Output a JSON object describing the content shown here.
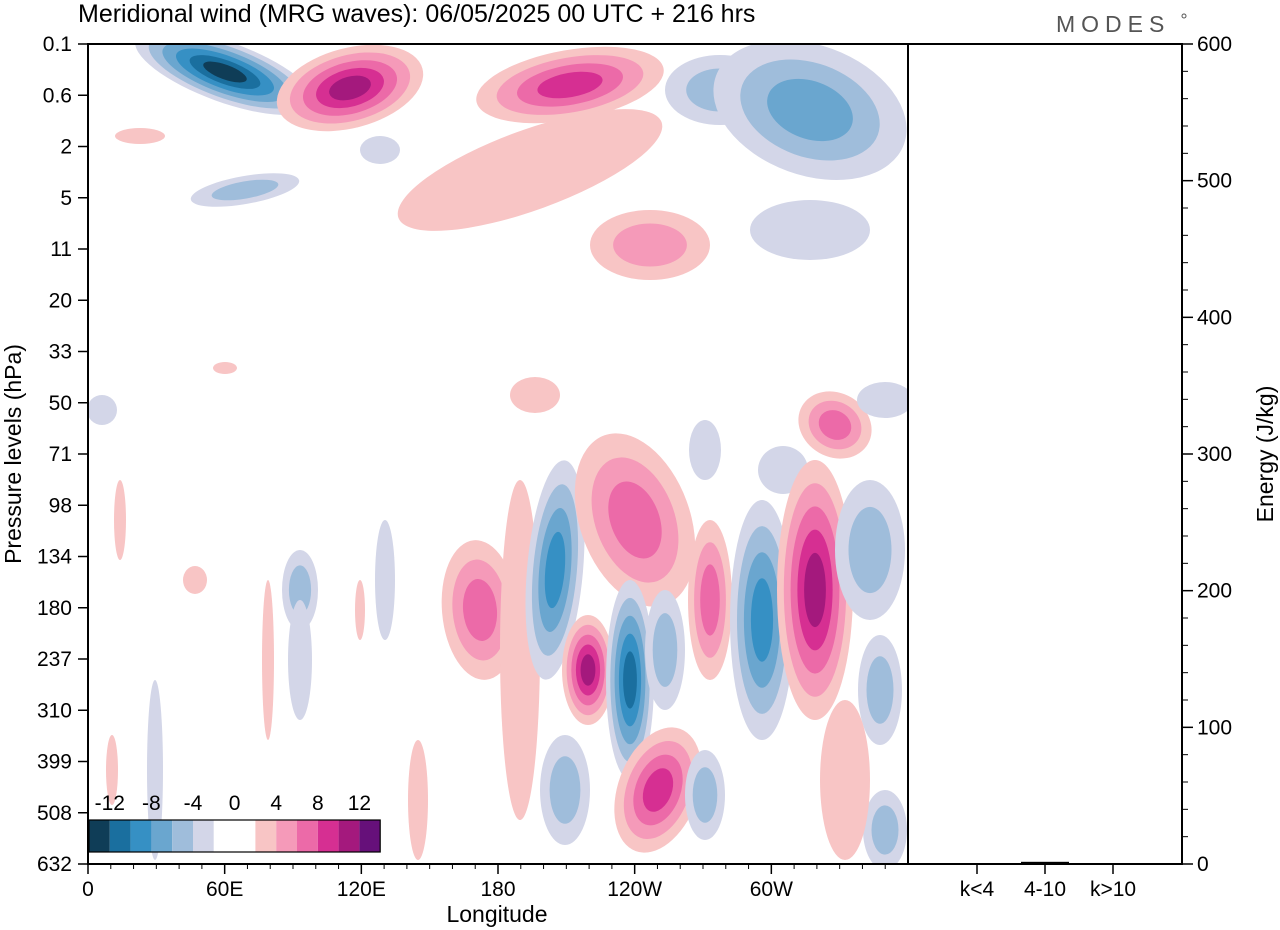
{
  "chart_data": [
    {
      "type": "heatmap",
      "title": "Meridional wind (MRG waves):  06/05/2025  00 UTC  + 216 hrs",
      "xlabel": "Longitude",
      "ylabel": "Pressure levels (hPa)",
      "x_ticks": [
        "0",
        "60E",
        "120E",
        "180",
        "120W",
        "60W"
      ],
      "x_range": [
        0,
        360
      ],
      "y_ticks": [
        "0.1",
        "0.6",
        "2",
        "5",
        "11",
        "20",
        "33",
        "50",
        "71",
        "98",
        "134",
        "180",
        "237",
        "310",
        "399",
        "508",
        "632"
      ],
      "y_range": [
        0.1,
        632
      ],
      "colorbar": {
        "labels": [
          "-12",
          "-8",
          "-4",
          "0",
          "4",
          "8",
          "12"
        ],
        "colors": [
          "#0f3d57",
          "#1a6f9f",
          "#3690c4",
          "#6aa6cf",
          "#9fbddb",
          "#d3d6e8",
          "#ffffff",
          "#ffffff",
          "#f8c5c5",
          "#f59ab9",
          "#ec6aa8",
          "#d62f92",
          "#a4197d",
          "#66107a"
        ]
      },
      "annotations": [
        "MODES"
      ]
    },
    {
      "type": "bar",
      "categories": [
        "k<4",
        "4-10",
        "k>10"
      ],
      "values": [
        0.4,
        1.6,
        0.2
      ],
      "ylabel": "Energy (J/kg)",
      "ylim": [
        0,
        600
      ],
      "y_ticks": [
        "0",
        "100",
        "200",
        "300",
        "400",
        "500",
        "600"
      ]
    }
  ]
}
